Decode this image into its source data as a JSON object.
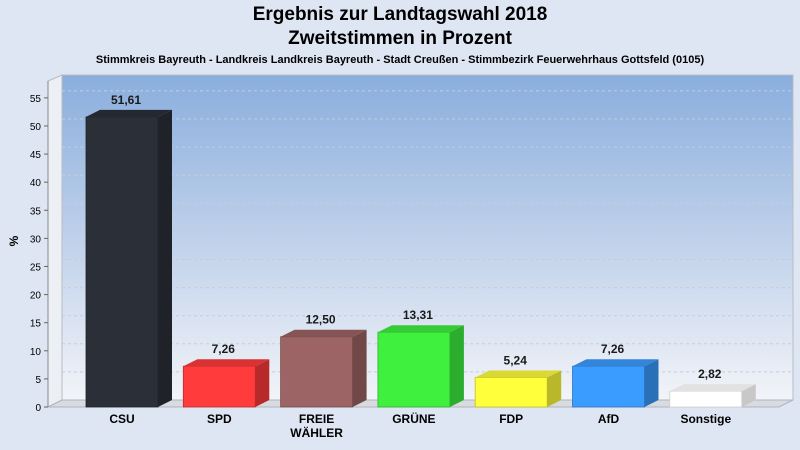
{
  "title": "Ergebnis zur Landtagswahl 2018",
  "subtitle_line2": "Zweitstimmen in Prozent",
  "subtitle": "Stimmkreis Bayreuth - Landkreis Landkreis Bayreuth - Stadt Creußen - Stimmbezirk Feuerwehrhaus Gottsfeld (0105)",
  "chart_data": {
    "type": "bar",
    "title": "Ergebnis zur Landtagswahl 2018",
    "ylabel": "%",
    "xlabel": "",
    "ylim": [
      0,
      58
    ],
    "yticks": [
      0,
      5,
      10,
      15,
      20,
      25,
      30,
      35,
      40,
      45,
      50,
      55
    ],
    "grid": true,
    "categories": [
      "CSU",
      "SPD",
      "FREIE WÄHLER",
      "GRÜNE",
      "FDP",
      "AfD",
      "Sonstige"
    ],
    "category_lines": [
      [
        "CSU"
      ],
      [
        "SPD"
      ],
      [
        "FREIE",
        "WÄHLER"
      ],
      [
        "GRÜNE"
      ],
      [
        "FDP"
      ],
      [
        "AfD"
      ],
      [
        "Sonstige"
      ]
    ],
    "values": [
      51.61,
      7.26,
      12.5,
      13.31,
      5.24,
      7.26,
      2.82
    ],
    "value_labels": [
      "51,61",
      "7,26",
      "12,50",
      "13,31",
      "5,24",
      "7,26",
      "2,82"
    ],
    "colors": [
      "#2b2f38",
      "#ff3b3b",
      "#9c6464",
      "#3ff03f",
      "#ffff3b",
      "#3b9cff",
      "#ffffff"
    ]
  }
}
